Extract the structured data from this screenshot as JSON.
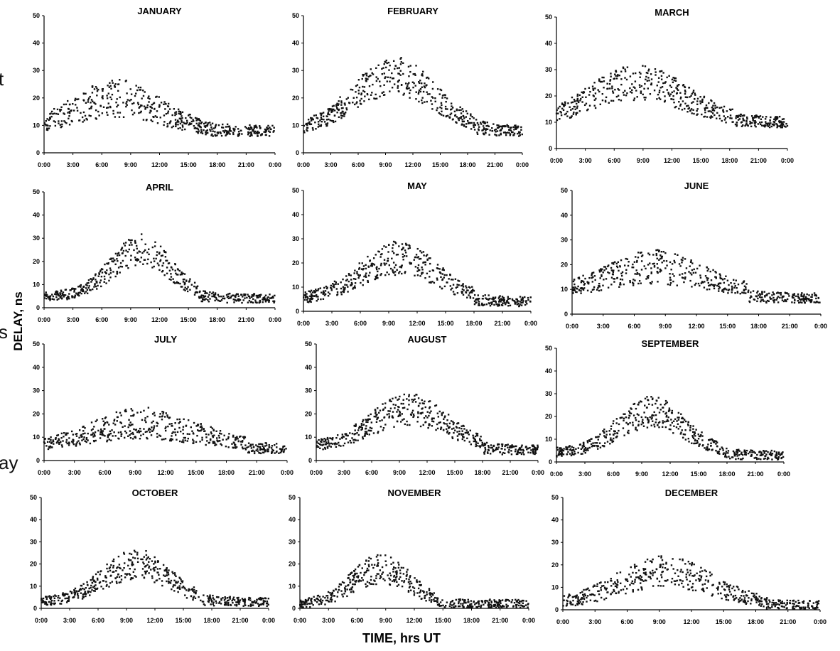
{
  "figure": {
    "ylabel": "DELAY, ns",
    "xlabel": "TIME, hrs UT",
    "left_text_fragments": [
      "t",
      "s",
      "ay"
    ]
  },
  "chart_data": [
    {
      "type": "scatter",
      "title": "JANUARY",
      "ylim": [
        0,
        50
      ],
      "yticks": [
        "0",
        "10",
        "20",
        "30",
        "40",
        "50"
      ],
      "xticks": [
        "0:00",
        "3:00",
        "6:00",
        "9:00",
        "12:00",
        "15:00",
        "18:00",
        "21:00",
        "0:00"
      ],
      "profile": {
        "peak_hour": 7.5,
        "peak_delay": 20,
        "base": 8,
        "width": 4.5,
        "night": 8
      }
    },
    {
      "type": "scatter",
      "title": "FEBRUARY",
      "ylim": [
        0,
        50
      ],
      "yticks": [
        "0",
        "10",
        "20",
        "30",
        "40",
        "50"
      ],
      "xticks": [
        "0:00",
        "3:00",
        "6:00",
        "9:00",
        "12:00",
        "15:00",
        "18:00",
        "21:00",
        "0:00"
      ],
      "profile": {
        "peak_hour": 10,
        "peak_delay": 28,
        "base": 8,
        "width": 4.5,
        "night": 8
      }
    },
    {
      "type": "scatter",
      "title": "MARCH",
      "ylim": [
        0,
        50
      ],
      "yticks": [
        "0",
        "10",
        "20",
        "30",
        "40",
        "50"
      ],
      "xticks": [
        "0:00",
        "3:00",
        "6:00",
        "9:00",
        "12:00",
        "15:00",
        "18:00",
        "21:00",
        "0:00"
      ],
      "profile": {
        "peak_hour": 8.5,
        "peak_delay": 25,
        "base": 10,
        "width": 5,
        "night": 10
      }
    },
    {
      "type": "scatter",
      "title": "APRIL",
      "ylim": [
        0,
        50
      ],
      "yticks": [
        "0",
        "10",
        "20",
        "30",
        "40",
        "50"
      ],
      "xticks": [
        "0:00",
        "3:00",
        "6:00",
        "9:00",
        "12:00",
        "15:00",
        "18:00",
        "21:00",
        "0:00"
      ],
      "profile": {
        "peak_hour": 10,
        "peak_delay": 25,
        "base": 5,
        "width": 3,
        "night": 3
      }
    },
    {
      "type": "scatter",
      "title": "MAY",
      "ylim": [
        0,
        50
      ],
      "yticks": [
        "0",
        "10",
        "20",
        "30",
        "40",
        "50"
      ],
      "xticks": [
        "0:00",
        "3:00",
        "6:00",
        "9:00",
        "12:00",
        "15:00",
        "18:00",
        "21:00",
        "0:00"
      ],
      "profile": {
        "peak_hour": 10,
        "peak_delay": 22,
        "base": 5,
        "width": 4,
        "night": 3
      }
    },
    {
      "type": "scatter",
      "title": "JUNE",
      "ylim": [
        0,
        50
      ],
      "yticks": [
        "0",
        "10",
        "20",
        "30",
        "40",
        "50"
      ],
      "xticks": [
        "0:00",
        "3:00",
        "6:00",
        "9:00",
        "12:00",
        "15:00",
        "18:00",
        "21:00",
        "0:00"
      ],
      "profile": {
        "peak_hour": 8,
        "peak_delay": 19,
        "base": 9,
        "width": 4.5,
        "night": 4
      }
    },
    {
      "type": "scatter",
      "title": "JULY",
      "ylim": [
        0,
        50
      ],
      "yticks": [
        "0",
        "10",
        "20",
        "30",
        "40",
        "50"
      ],
      "xticks": [
        "0:00",
        "3:00",
        "6:00",
        "9:00",
        "12:00",
        "15:00",
        "18:00",
        "21:00",
        "0:00"
      ],
      "profile": {
        "peak_hour": 10,
        "peak_delay": 16,
        "base": 6,
        "width": 5,
        "night": 4
      }
    },
    {
      "type": "scatter",
      "title": "AUGUST",
      "ylim": [
        0,
        50
      ],
      "yticks": [
        "0",
        "10",
        "20",
        "30",
        "40",
        "50"
      ],
      "xticks": [
        "0:00",
        "3:00",
        "6:00",
        "9:00",
        "12:00",
        "15:00",
        "18:00",
        "21:00",
        "0:00"
      ],
      "profile": {
        "peak_hour": 10,
        "peak_delay": 22,
        "base": 6,
        "width": 4,
        "night": 3
      }
    },
    {
      "type": "scatter",
      "title": "SEPTEMBER",
      "ylim": [
        0,
        50
      ],
      "yticks": [
        "0",
        "10",
        "20",
        "30",
        "40",
        "50"
      ],
      "xticks": [
        "0:00",
        "3:00",
        "6:00",
        "9:00",
        "12:00",
        "15:00",
        "18:00",
        "21:00",
        "0:00"
      ],
      "profile": {
        "peak_hour": 10,
        "peak_delay": 22,
        "base": 4,
        "width": 3.5,
        "night": 2
      }
    },
    {
      "type": "scatter",
      "title": "OCTOBER",
      "ylim": [
        0,
        50
      ],
      "yticks": [
        "0",
        "10",
        "20",
        "30",
        "40",
        "50"
      ],
      "xticks": [
        "0:00",
        "3:00",
        "6:00",
        "9:00",
        "12:00",
        "15:00",
        "18:00",
        "21:00",
        "0:00"
      ],
      "profile": {
        "peak_hour": 10,
        "peak_delay": 20,
        "base": 3,
        "width": 3.5,
        "night": 3
      }
    },
    {
      "type": "scatter",
      "title": "NOVEMBER",
      "ylim": [
        0,
        50
      ],
      "yticks": [
        "0",
        "10",
        "20",
        "30",
        "40",
        "50"
      ],
      "xticks": [
        "0:00",
        "3:00",
        "6:00",
        "9:00",
        "12:00",
        "15:00",
        "18:00",
        "21:00",
        "0:00"
      ],
      "profile": {
        "peak_hour": 8.5,
        "peak_delay": 18,
        "base": 2,
        "width": 3,
        "night": 2
      }
    },
    {
      "type": "scatter",
      "title": "DECEMBER",
      "ylim": [
        0,
        50
      ],
      "yticks": [
        "0",
        "10",
        "20",
        "30",
        "40",
        "50"
      ],
      "xticks": [
        "0:00",
        "3:00",
        "6:00",
        "9:00",
        "12:00",
        "15:00",
        "18:00",
        "21:00",
        "0:00"
      ],
      "profile": {
        "peak_hour": 9.5,
        "peak_delay": 17,
        "base": 2,
        "width": 4.5,
        "night": 2
      }
    }
  ]
}
